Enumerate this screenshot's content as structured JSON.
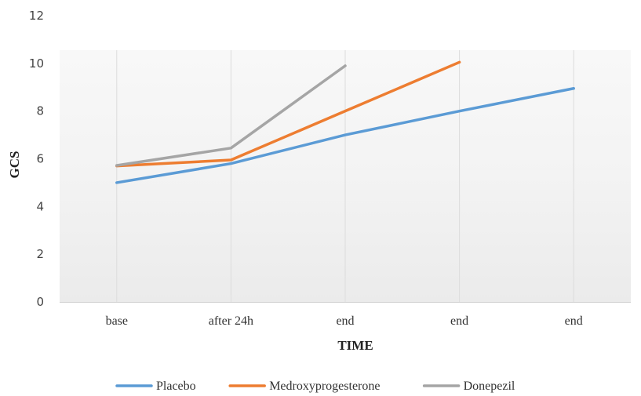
{
  "chart_data": {
    "type": "line",
    "categories": [
      "base",
      "after 24h",
      "end",
      "end",
      "end"
    ],
    "series": [
      {
        "name": "Placebo",
        "color": "#5B9BD5",
        "values": [
          5.0,
          5.8,
          7.0,
          8.0,
          8.95
        ]
      },
      {
        "name": "Medroxyprogesterone",
        "color": "#ED7D31",
        "values": [
          5.7,
          5.95,
          8.0,
          10.05,
          null
        ]
      },
      {
        "name": "Donepezil",
        "color": "#A5A5A5",
        "values": [
          5.72,
          6.45,
          9.9,
          null,
          null
        ]
      }
    ],
    "xlabel": "TIME",
    "ylabel": "GCS",
    "ylim": [
      0,
      12
    ],
    "yticks": [
      0,
      2,
      4,
      6,
      8,
      10,
      12
    ],
    "grid": "vertical",
    "legend_position": "bottom"
  }
}
